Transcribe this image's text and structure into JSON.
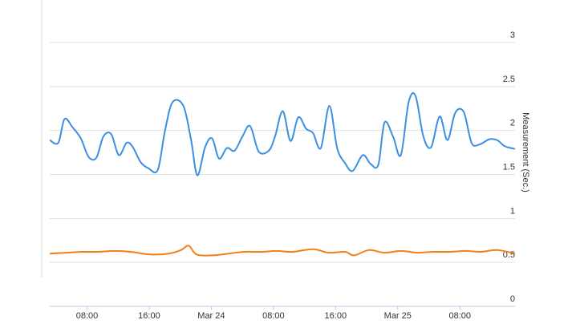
{
  "chart_data": {
    "type": "line",
    "y_axis_label": "Measurement (Sec.)",
    "xlim": [
      3.2,
      63.1
    ],
    "xticks": [
      {
        "value": 8,
        "label": "08:00"
      },
      {
        "value": 16,
        "label": "16:00"
      },
      {
        "value": 24,
        "label": "Mar 24"
      },
      {
        "value": 32,
        "label": "08:00"
      },
      {
        "value": 40,
        "label": "16:00"
      },
      {
        "value": 48,
        "label": "Mar 25"
      },
      {
        "value": 56,
        "label": "08:00"
      }
    ],
    "ylim": [
      0,
      3
    ],
    "yticks": [
      0,
      0.5,
      1,
      1.5,
      2,
      2.5,
      3
    ],
    "grid": true,
    "y_axis_side": "right",
    "series": [
      {
        "color": "#3b8fe3",
        "x": [
          3.2,
          4.3,
          5.1,
          6.1,
          7.2,
          8.2,
          9.2,
          10.1,
          11.1,
          12.1,
          13.1,
          13.9,
          14.9,
          15.9,
          17.1,
          18.0,
          19.0,
          20.4,
          21.4,
          22.2,
          23.2,
          24.1,
          25.0,
          26.0,
          27.0,
          28.0,
          29.0,
          30.1,
          31.4,
          32.2,
          33.2,
          34.2,
          35.2,
          36.2,
          37.1,
          38.1,
          39.2,
          40.2,
          41.2,
          42.2,
          43.5,
          44.5,
          45.5,
          46.3,
          47.4,
          48.4,
          49.4,
          50.3,
          51.3,
          52.3,
          53.4,
          54.4,
          55.4,
          56.5,
          57.5,
          58.5,
          59.8,
          60.8,
          61.8,
          63.1
        ],
        "values": [
          1.89,
          1.86,
          2.13,
          2.04,
          1.91,
          1.7,
          1.69,
          1.93,
          1.96,
          1.72,
          1.86,
          1.81,
          1.64,
          1.57,
          1.55,
          1.98,
          2.32,
          2.28,
          1.89,
          1.49,
          1.81,
          1.91,
          1.68,
          1.8,
          1.77,
          1.93,
          2.05,
          1.76,
          1.77,
          1.93,
          2.22,
          1.88,
          2.15,
          2.02,
          1.97,
          1.8,
          2.28,
          1.8,
          1.63,
          1.54,
          1.72,
          1.62,
          1.61,
          2.09,
          1.93,
          1.72,
          2.32,
          2.39,
          1.93,
          1.81,
          2.16,
          1.89,
          2.2,
          2.21,
          1.86,
          1.84,
          1.9,
          1.89,
          1.82,
          1.79
        ]
      },
      {
        "color": "#f57f17",
        "x": [
          3.2,
          5.3,
          7.4,
          9.4,
          11.5,
          13.6,
          16.2,
          18.5,
          20.1,
          21.1,
          22.1,
          24.2,
          26.2,
          28.3,
          30.4,
          32.4,
          34.5,
          37.1,
          39.1,
          41.2,
          42.4,
          44.3,
          46.3,
          48.4,
          50.5,
          52.5,
          54.6,
          56.7,
          58.7,
          60.8,
          63.1
        ],
        "values": [
          0.6,
          0.61,
          0.62,
          0.62,
          0.63,
          0.62,
          0.59,
          0.6,
          0.64,
          0.69,
          0.59,
          0.58,
          0.6,
          0.62,
          0.62,
          0.63,
          0.62,
          0.65,
          0.61,
          0.62,
          0.58,
          0.64,
          0.61,
          0.63,
          0.61,
          0.62,
          0.62,
          0.63,
          0.62,
          0.64,
          0.6
        ]
      }
    ]
  }
}
